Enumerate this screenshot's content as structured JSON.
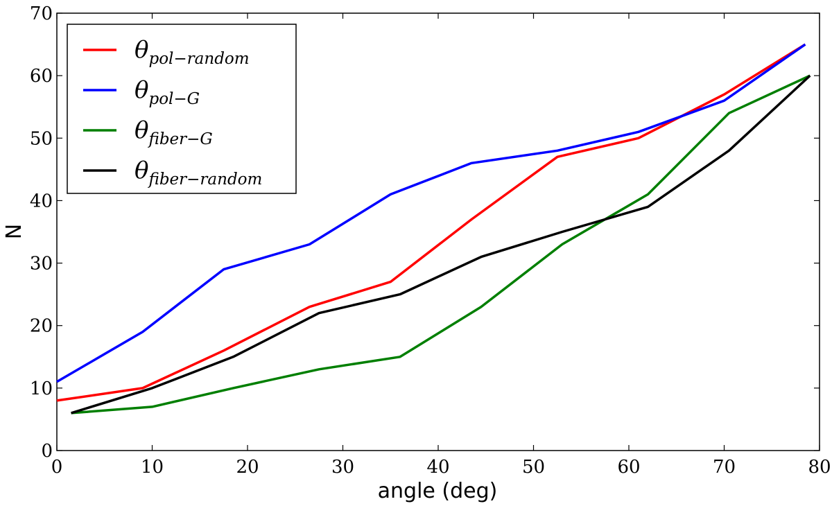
{
  "chart_data": {
    "type": "line",
    "title": "",
    "xlabel": "angle (deg)",
    "ylabel": "N",
    "xlim": [
      0,
      80
    ],
    "ylim": [
      0,
      70
    ],
    "xticks": [
      0,
      10,
      20,
      30,
      40,
      50,
      60,
      70,
      80
    ],
    "yticks": [
      0,
      10,
      20,
      30,
      40,
      50,
      60,
      70
    ],
    "grid": false,
    "legend_position": "top-left",
    "series": [
      {
        "name": "θpol−random",
        "symbol": "θ",
        "subscript": "pol−random",
        "color": "#ff0000",
        "x": [
          0,
          9,
          17.5,
          26.5,
          35,
          43.5,
          52.5,
          61,
          70,
          78.5
        ],
        "y": [
          8,
          10,
          16,
          23,
          27,
          37,
          47,
          50,
          57,
          65
        ]
      },
      {
        "name": "θpol−G",
        "symbol": "θ",
        "subscript": "pol−G",
        "color": "#0000ff",
        "x": [
          0,
          9,
          17.5,
          26.5,
          35,
          43.5,
          52.5,
          61,
          70,
          78.5
        ],
        "y": [
          11,
          19,
          29,
          33,
          41,
          46,
          48,
          51,
          56,
          65
        ]
      },
      {
        "name": "θfiber−G",
        "symbol": "θ",
        "subscript": "fiber−G",
        "color": "#007f00",
        "x": [
          1.5,
          10,
          18.5,
          27.5,
          36,
          44.5,
          53,
          62,
          70.5,
          79
        ],
        "y": [
          6,
          7,
          10,
          13,
          15,
          23,
          33,
          41,
          54,
          60
        ]
      },
      {
        "name": "θfiber−random",
        "symbol": "θ",
        "subscript": "fiber−random",
        "color": "#000000",
        "x": [
          1.5,
          10,
          18.5,
          27.5,
          36,
          44.5,
          53,
          62,
          70.5,
          79
        ],
        "y": [
          6,
          10,
          15,
          22,
          25,
          31,
          35,
          39,
          48,
          60
        ]
      }
    ]
  }
}
